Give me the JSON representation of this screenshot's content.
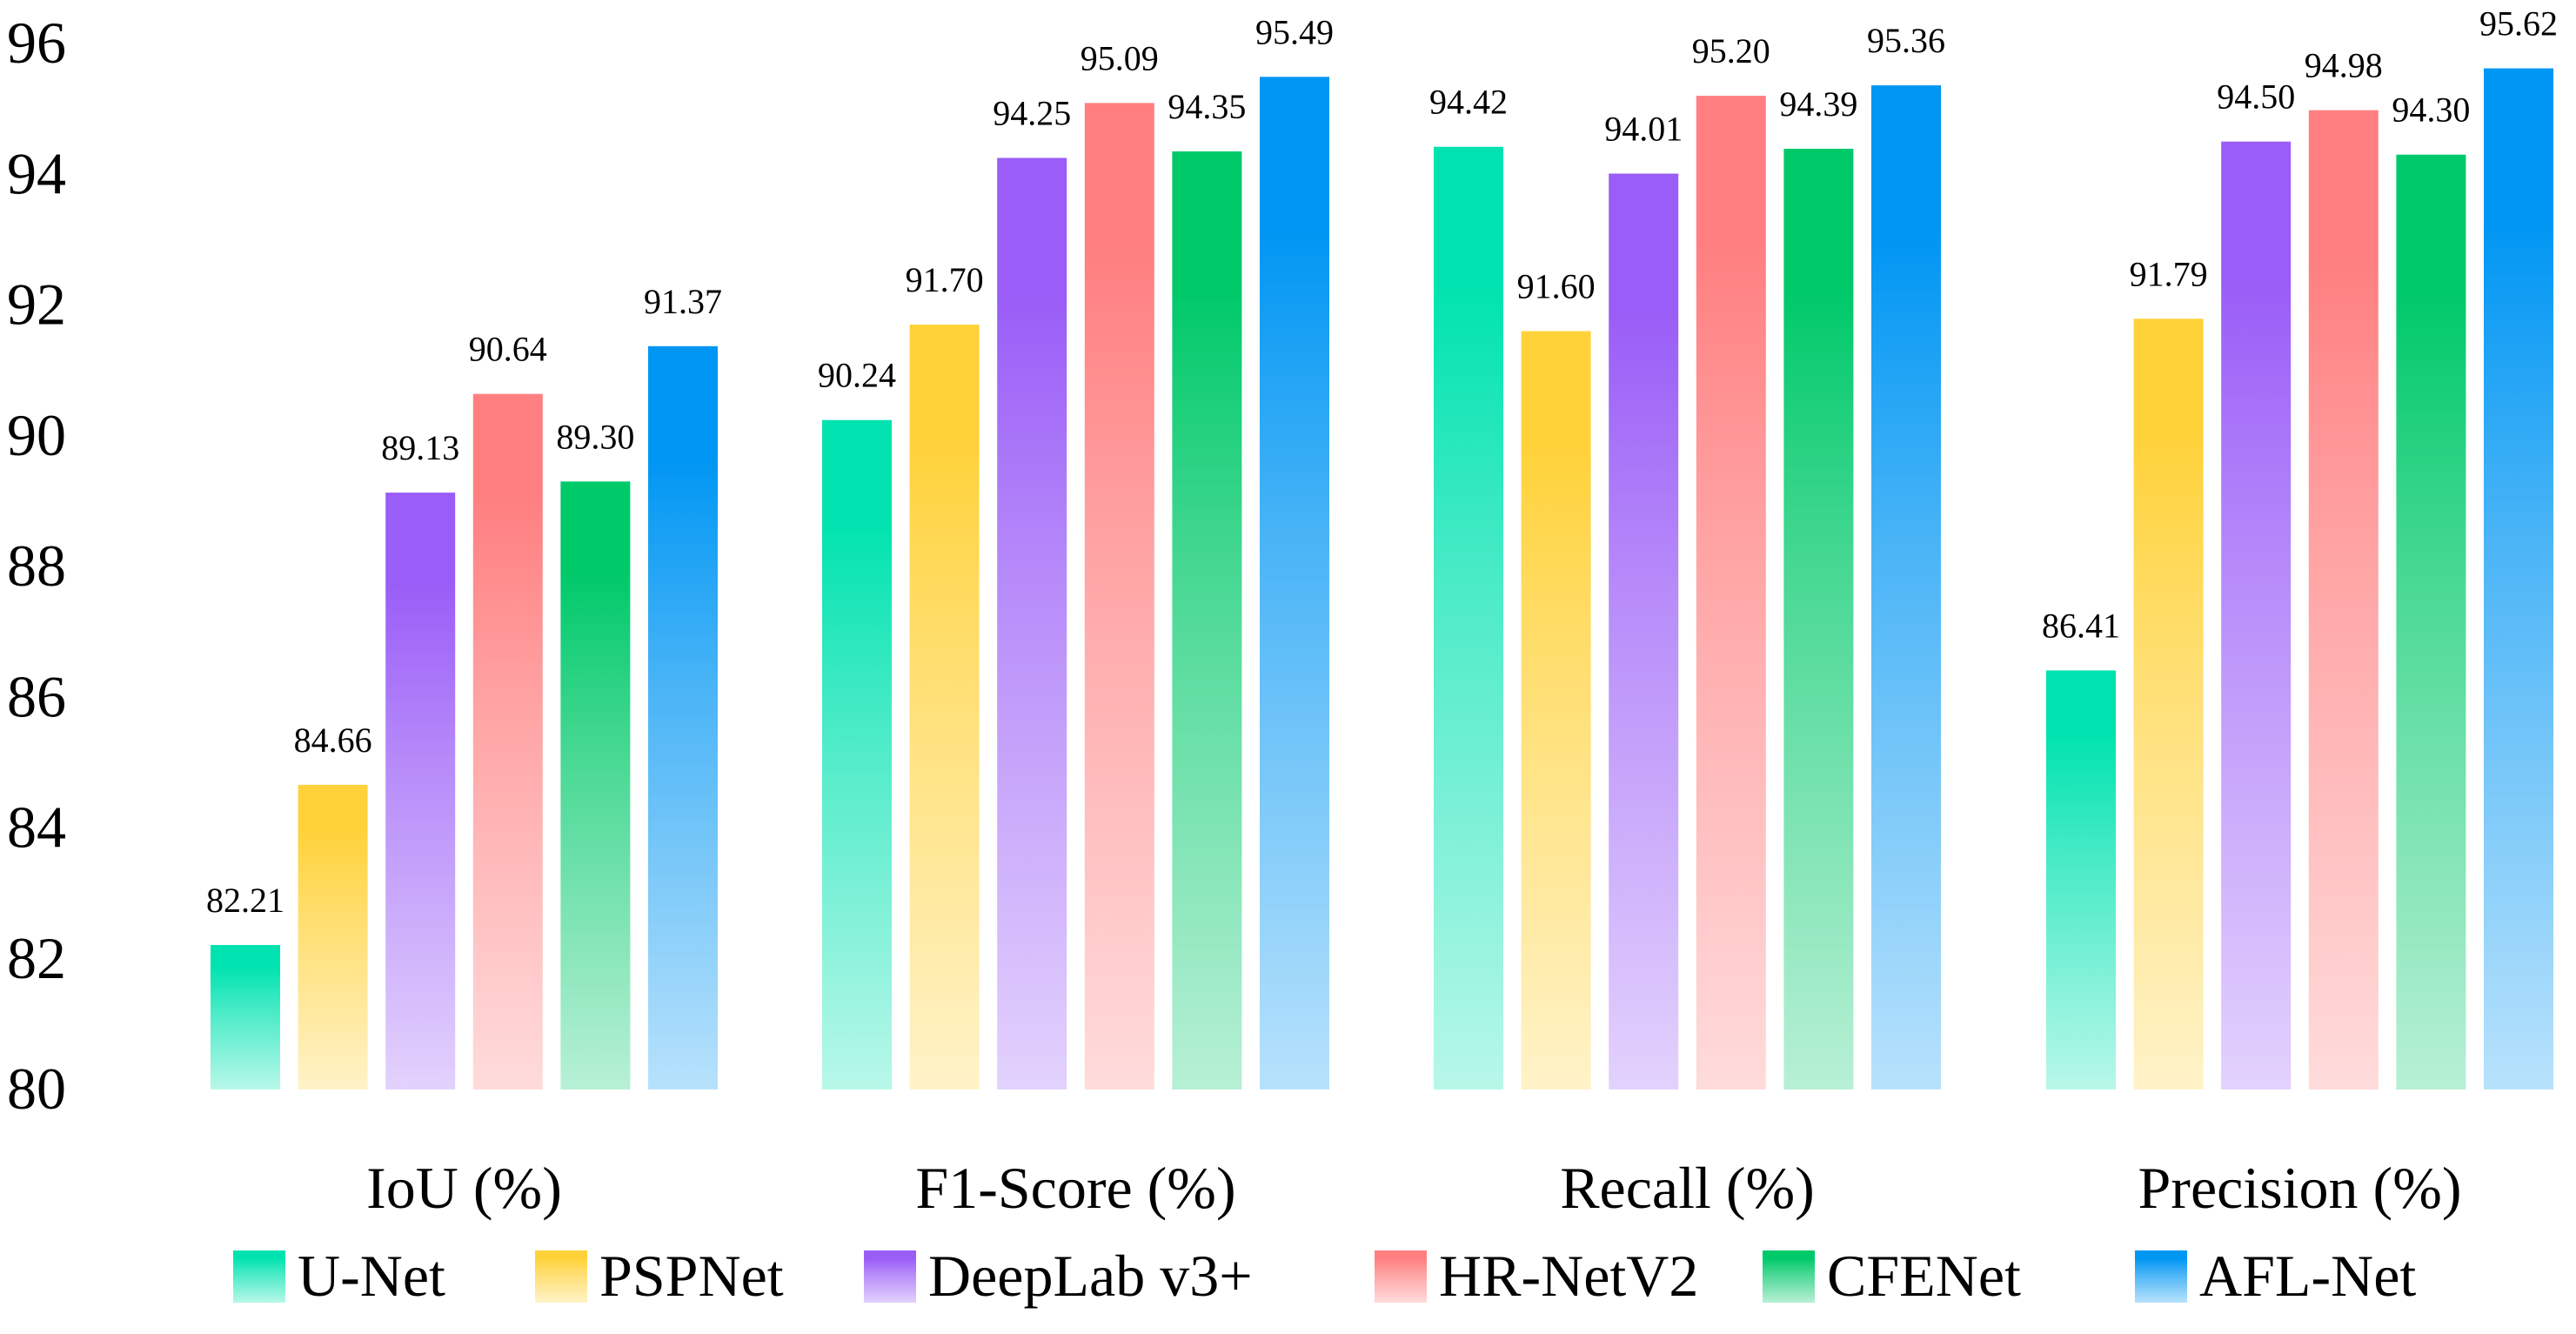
{
  "chart_data": {
    "type": "bar",
    "title": "",
    "xlabel": "",
    "ylabel": "",
    "ylim": [
      80,
      96
    ],
    "yticks": [
      80,
      82,
      84,
      86,
      88,
      90,
      92,
      94,
      96
    ],
    "grid": false,
    "legend_position": "bottom",
    "categories": [
      "IoU (%)",
      "F1-Score (%)",
      "Recall (%)",
      "Precision (%)"
    ],
    "series": [
      {
        "name": "U-Net",
        "color": "#00e3b0",
        "values": [
          82.21,
          90.24,
          94.42,
          86.41
        ]
      },
      {
        "name": "PSPNet",
        "color": "#ffd23a",
        "values": [
          84.66,
          91.7,
          91.6,
          91.79
        ]
      },
      {
        "name": "DeepLab v3+",
        "color": "#9a5df7",
        "values": [
          89.13,
          94.25,
          94.01,
          94.5
        ]
      },
      {
        "name": "HR-NetV2",
        "color": "#ff7f80",
        "values": [
          90.64,
          95.09,
          95.2,
          94.98
        ]
      },
      {
        "name": "CFENet",
        "color": "#00c96a",
        "values": [
          89.3,
          94.35,
          94.39,
          94.3
        ]
      },
      {
        "name": "AFL-Net",
        "color": "#0096f3",
        "values": [
          91.37,
          95.49,
          95.36,
          95.62
        ]
      }
    ]
  }
}
